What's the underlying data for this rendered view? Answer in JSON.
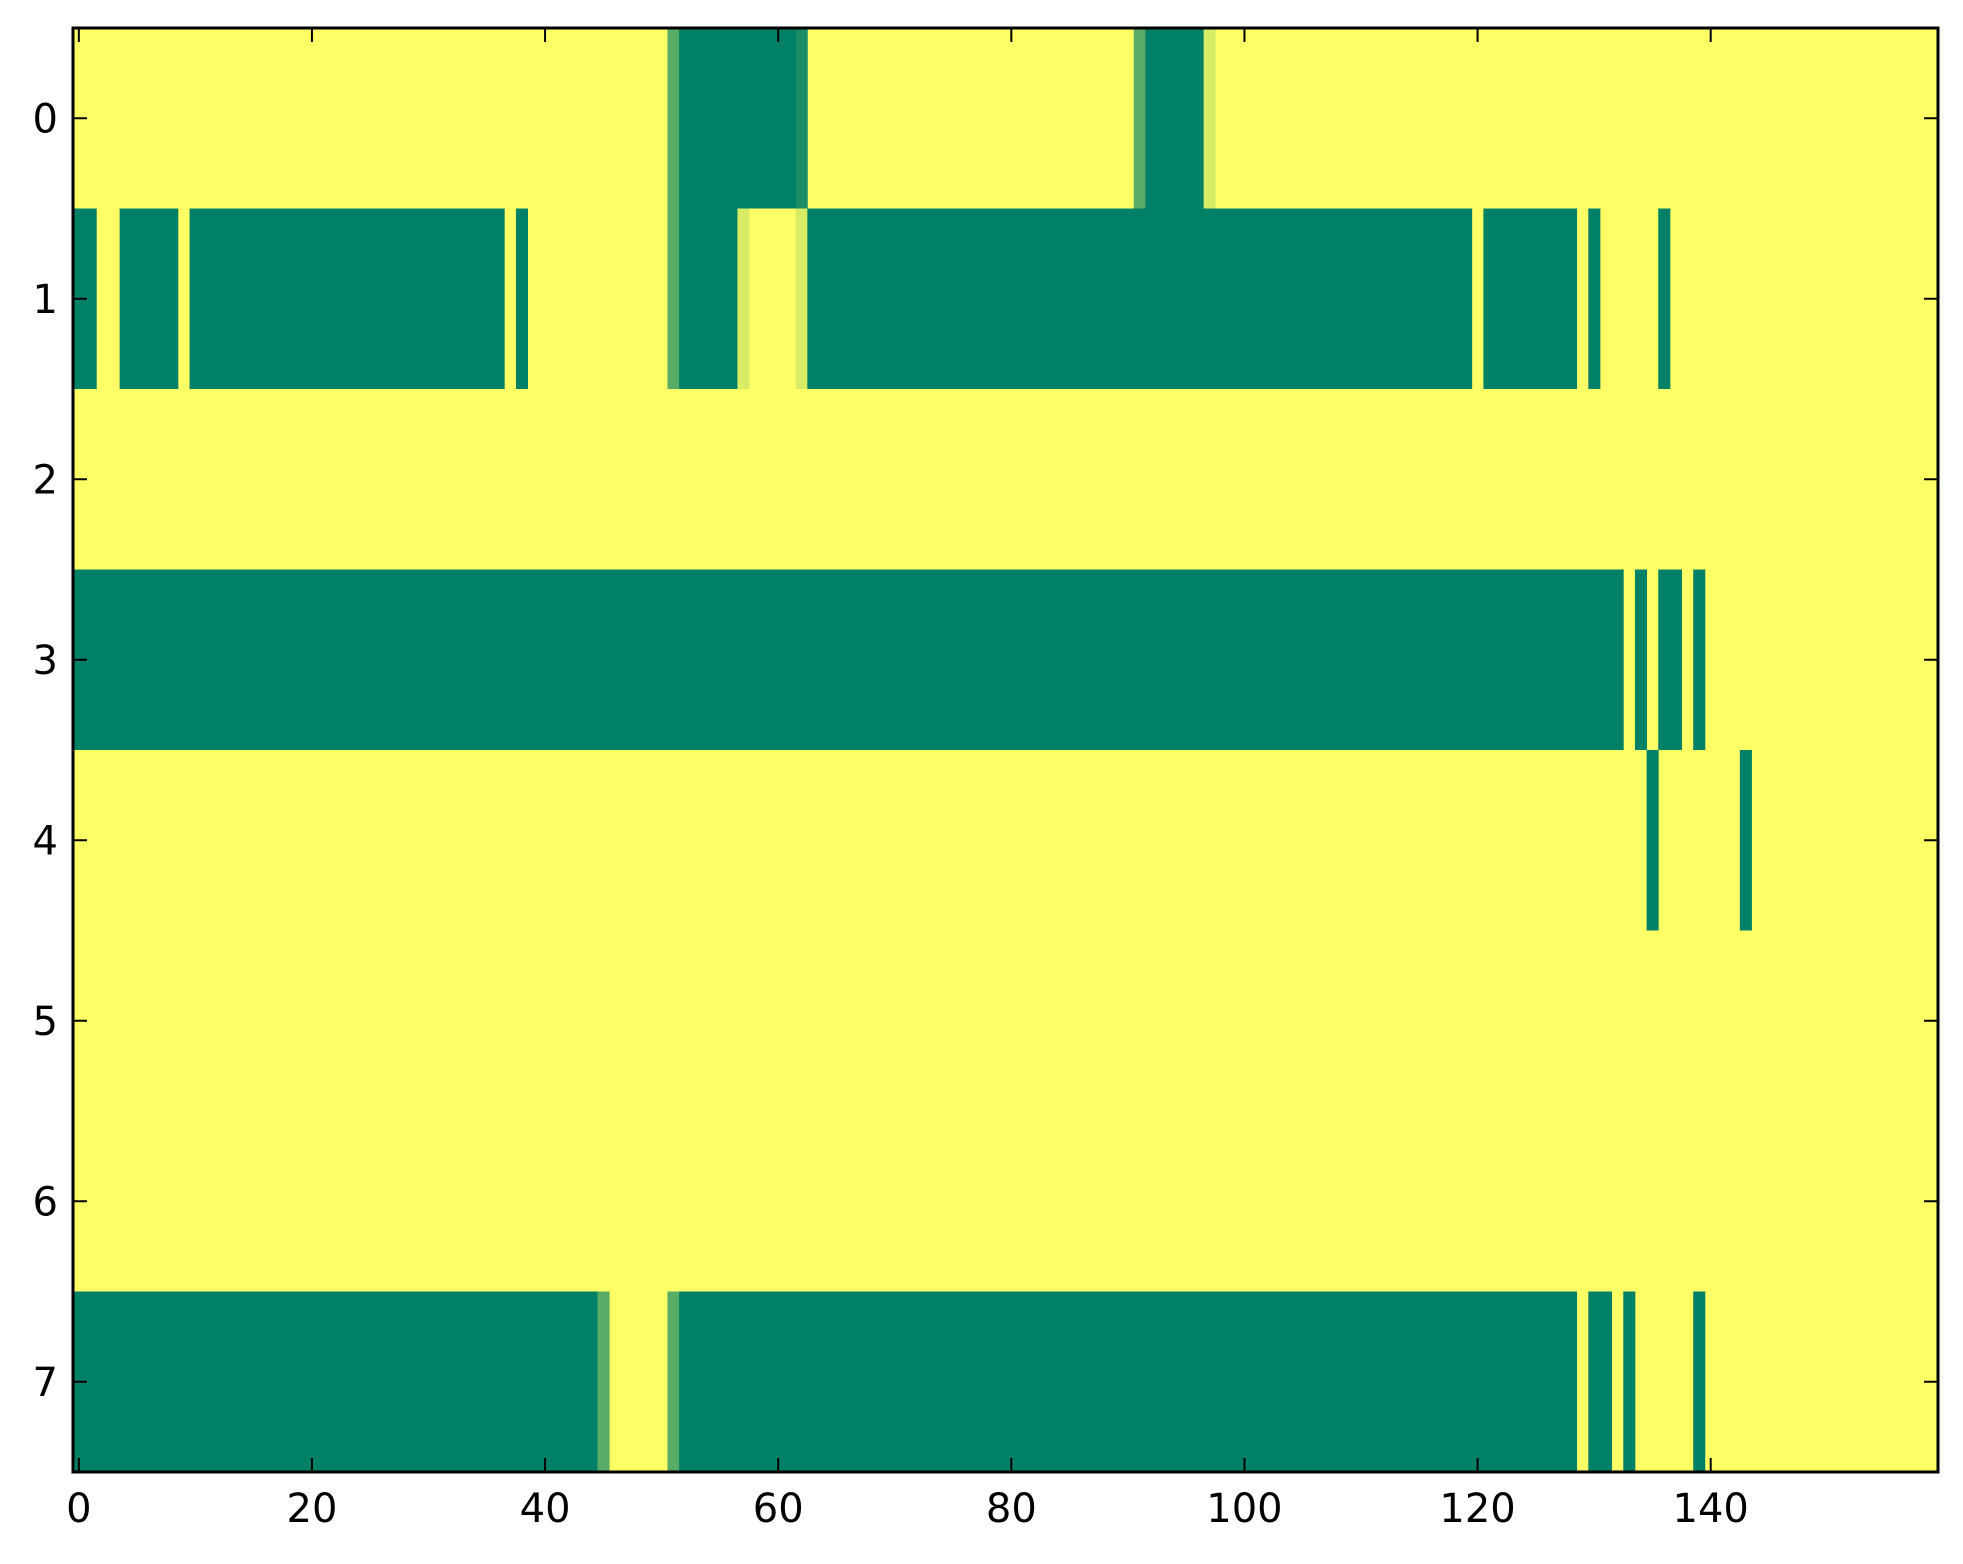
{
  "chart_data": {
    "type": "heatmap",
    "title": "",
    "xlabel": "",
    "ylabel": "",
    "xlim": [
      -0.5,
      159.5
    ],
    "ylim": [
      7.5,
      -0.5
    ],
    "x_ticks": [
      0,
      20,
      40,
      60,
      80,
      100,
      120,
      140
    ],
    "x_tick_labels": [
      "0",
      "20",
      "40",
      "60",
      "80",
      "100",
      "120",
      "140"
    ],
    "y_ticks": [
      0,
      1,
      2,
      3,
      4,
      5,
      6,
      7
    ],
    "y_tick_labels": [
      "0",
      "1",
      "2",
      "3",
      "4",
      "5",
      "6",
      "7"
    ],
    "n_columns": 160,
    "value_range": [
      0,
      1
    ],
    "colormap": "summer_r",
    "colors": {
      "high": "#ffff66",
      "low": "#008066",
      "axis": "#000000"
    },
    "background_value": 1,
    "grid": false,
    "legend": "none",
    "rows": [
      {
        "row": 0,
        "runs": [
          {
            "start": 51,
            "end": 51,
            "value": 0.35
          },
          {
            "start": 52,
            "end": 61,
            "value": 0
          },
          {
            "start": 62,
            "end": 62,
            "value": 0.1
          },
          {
            "start": 91,
            "end": 91,
            "value": 0.35
          },
          {
            "start": 92,
            "end": 96,
            "value": 0
          },
          {
            "start": 97,
            "end": 97,
            "value": 0.85
          }
        ]
      },
      {
        "row": 1,
        "runs": [
          {
            "start": 0,
            "end": 1,
            "value": 0
          },
          {
            "start": 4,
            "end": 8,
            "value": 0
          },
          {
            "start": 10,
            "end": 36,
            "value": 0
          },
          {
            "start": 38,
            "end": 38,
            "value": 0
          },
          {
            "start": 51,
            "end": 51,
            "value": 0.35
          },
          {
            "start": 52,
            "end": 56,
            "value": 0
          },
          {
            "start": 57,
            "end": 57,
            "value": 0.85
          },
          {
            "start": 62,
            "end": 62,
            "value": 0.85
          },
          {
            "start": 63,
            "end": 119,
            "value": 0
          },
          {
            "start": 121,
            "end": 128,
            "value": 0
          },
          {
            "start": 130,
            "end": 130,
            "value": 0
          },
          {
            "start": 136,
            "end": 136,
            "value": 0
          }
        ]
      },
      {
        "row": 2,
        "runs": []
      },
      {
        "row": 3,
        "runs": [
          {
            "start": 0,
            "end": 132,
            "value": 0
          },
          {
            "start": 134,
            "end": 134,
            "value": 0
          },
          {
            "start": 136,
            "end": 137,
            "value": 0
          },
          {
            "start": 139,
            "end": 139,
            "value": 0
          }
        ]
      },
      {
        "row": 4,
        "runs": [
          {
            "start": 135,
            "end": 135,
            "value": 0
          },
          {
            "start": 143,
            "end": 143,
            "value": 0
          }
        ]
      },
      {
        "row": 5,
        "runs": []
      },
      {
        "row": 6,
        "runs": []
      },
      {
        "row": 7,
        "runs": [
          {
            "start": 0,
            "end": 44,
            "value": 0
          },
          {
            "start": 45,
            "end": 45,
            "value": 0.35
          },
          {
            "start": 51,
            "end": 51,
            "value": 0.35
          },
          {
            "start": 52,
            "end": 128,
            "value": 0
          },
          {
            "start": 130,
            "end": 131,
            "value": 0
          },
          {
            "start": 133,
            "end": 133,
            "value": 0
          },
          {
            "start": 139,
            "end": 139,
            "value": 0
          }
        ]
      }
    ]
  }
}
